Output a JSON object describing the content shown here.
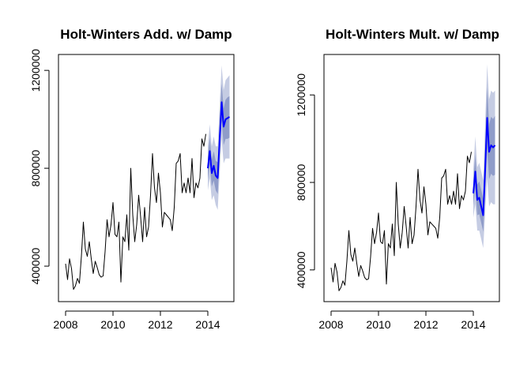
{
  "chart_data": [
    {
      "type": "line",
      "title": "Holt-Winters Add. w/ Damp",
      "xlabel": "",
      "ylabel": "",
      "xlim": [
        2007.7,
        2015.1
      ],
      "ylim": [
        255000,
        1265000
      ],
      "x_ticks": [
        2008,
        2010,
        2012,
        2014
      ],
      "x_tick_labels": [
        "2008",
        "2010",
        "2012",
        "2014"
      ],
      "y_ticks": [
        400000,
        800000,
        1200000
      ],
      "y_tick_labels": [
        "400000",
        "800000",
        "1200000"
      ],
      "grid": false,
      "series": [
        {
          "color": "#000000",
          "x": [
            2008.0,
            2008.083,
            2008.167,
            2008.25,
            2008.333,
            2008.417,
            2008.5,
            2008.583,
            2008.667,
            2008.75,
            2008.833,
            2008.917,
            2009.0,
            2009.083,
            2009.167,
            2009.25,
            2009.333,
            2009.417,
            2009.5,
            2009.583,
            2009.667,
            2009.75,
            2009.833,
            2009.917,
            2010.0,
            2010.083,
            2010.167,
            2010.25,
            2010.333,
            2010.417,
            2010.5,
            2010.583,
            2010.667,
            2010.75,
            2010.833,
            2010.917,
            2011.0,
            2011.083,
            2011.167,
            2011.25,
            2011.333,
            2011.417,
            2011.5,
            2011.583,
            2011.667,
            2011.75,
            2011.833,
            2011.917,
            2012.0,
            2012.083,
            2012.167,
            2012.25,
            2012.333,
            2012.417,
            2012.5,
            2012.583,
            2012.667,
            2012.75,
            2012.833,
            2012.917,
            2013.0,
            2013.083,
            2013.167,
            2013.25,
            2013.333,
            2013.417,
            2013.5,
            2013.583,
            2013.667,
            2013.75,
            2013.833,
            2013.917
          ],
          "y": [
            410000,
            345000,
            430000,
            390000,
            305000,
            320000,
            350000,
            330000,
            440000,
            580000,
            470000,
            440000,
            500000,
            430000,
            370000,
            420000,
            395000,
            365000,
            355000,
            360000,
            460000,
            590000,
            520000,
            570000,
            660000,
            530000,
            520000,
            580000,
            335000,
            520000,
            500000,
            610000,
            465000,
            800000,
            610000,
            500000,
            570000,
            690000,
            600000,
            500000,
            640000,
            520000,
            560000,
            690000,
            860000,
            720000,
            660000,
            780000,
            700000,
            560000,
            620000,
            610000,
            600000,
            590000,
            545000,
            640000,
            820000,
            830000,
            860000,
            700000,
            740000,
            700000,
            760000,
            700000,
            840000,
            680000,
            740000,
            720000,
            760000,
            920000,
            890000,
            940000
          ]
        },
        {
          "color": "#0000ff",
          "x": [
            2014.0,
            2014.083,
            2014.167,
            2014.25,
            2014.333,
            2014.417,
            2014.5,
            2014.583,
            2014.667,
            2014.75,
            2014.833,
            2014.917
          ],
          "y": [
            800000,
            870000,
            780000,
            810000,
            770000,
            760000,
            920000,
            1070000,
            970000,
            1000000,
            1005000,
            1010000
          ]
        }
      ],
      "intervals": [
        {
          "color": "#5a6cb0",
          "opacity": 0.35,
          "x": [
            2014.0,
            2014.083,
            2014.167,
            2014.25,
            2014.333,
            2014.417,
            2014.5,
            2014.583,
            2014.667,
            2014.75,
            2014.833,
            2014.917
          ],
          "lower": [
            710000,
            760000,
            670000,
            690000,
            650000,
            630000,
            780000,
            920000,
            820000,
            840000,
            840000,
            840000
          ],
          "upper": [
            890000,
            980000,
            890000,
            930000,
            890000,
            890000,
            1060000,
            1220000,
            1120000,
            1160000,
            1170000,
            1180000
          ]
        },
        {
          "color": "#5a6cb0",
          "opacity": 0.5,
          "x": [
            2014.0,
            2014.083,
            2014.167,
            2014.25,
            2014.333,
            2014.417,
            2014.5,
            2014.583,
            2014.667,
            2014.75,
            2014.833,
            2014.917
          ],
          "lower": [
            755000,
            815000,
            725000,
            750000,
            710000,
            695000,
            850000,
            995000,
            895000,
            920000,
            920000,
            925000
          ],
          "upper": [
            845000,
            925000,
            835000,
            870000,
            830000,
            825000,
            990000,
            1145000,
            1045000,
            1080000,
            1090000,
            1095000
          ]
        }
      ]
    },
    {
      "type": "line",
      "title": "Holt-Winters Mult. w/ Damp",
      "xlabel": "",
      "ylabel": "",
      "xlim": [
        2007.7,
        2015.1
      ],
      "ylim": [
        255000,
        1385000
      ],
      "x_ticks": [
        2008,
        2010,
        2012,
        2014
      ],
      "x_tick_labels": [
        "2008",
        "2010",
        "2012",
        "2014"
      ],
      "y_ticks": [
        400000,
        800000,
        1200000
      ],
      "y_tick_labels": [
        "400000",
        "800000",
        "1200000"
      ],
      "grid": false,
      "series": [
        {
          "color": "#000000",
          "x": [
            2008.0,
            2008.083,
            2008.167,
            2008.25,
            2008.333,
            2008.417,
            2008.5,
            2008.583,
            2008.667,
            2008.75,
            2008.833,
            2008.917,
            2009.0,
            2009.083,
            2009.167,
            2009.25,
            2009.333,
            2009.417,
            2009.5,
            2009.583,
            2009.667,
            2009.75,
            2009.833,
            2009.917,
            2010.0,
            2010.083,
            2010.167,
            2010.25,
            2010.333,
            2010.417,
            2010.5,
            2010.583,
            2010.667,
            2010.75,
            2010.833,
            2010.917,
            2011.0,
            2011.083,
            2011.167,
            2011.25,
            2011.333,
            2011.417,
            2011.5,
            2011.583,
            2011.667,
            2011.75,
            2011.833,
            2011.917,
            2012.0,
            2012.083,
            2012.167,
            2012.25,
            2012.333,
            2012.417,
            2012.5,
            2012.583,
            2012.667,
            2012.75,
            2012.833,
            2012.917,
            2013.0,
            2013.083,
            2013.167,
            2013.25,
            2013.333,
            2013.417,
            2013.5,
            2013.583,
            2013.667,
            2013.75,
            2013.833,
            2013.917
          ],
          "y": [
            410000,
            345000,
            430000,
            390000,
            305000,
            320000,
            350000,
            330000,
            440000,
            580000,
            470000,
            440000,
            500000,
            430000,
            370000,
            420000,
            395000,
            365000,
            355000,
            360000,
            460000,
            590000,
            520000,
            570000,
            660000,
            530000,
            520000,
            580000,
            335000,
            520000,
            500000,
            610000,
            465000,
            800000,
            610000,
            500000,
            570000,
            690000,
            600000,
            500000,
            640000,
            520000,
            560000,
            690000,
            860000,
            720000,
            660000,
            780000,
            700000,
            560000,
            620000,
            610000,
            600000,
            590000,
            545000,
            640000,
            820000,
            830000,
            860000,
            700000,
            740000,
            700000,
            760000,
            700000,
            840000,
            680000,
            740000,
            720000,
            760000,
            920000,
            890000,
            940000
          ]
        },
        {
          "color": "#0000ff",
          "x": [
            2014.0,
            2014.083,
            2014.167,
            2014.25,
            2014.333,
            2014.417,
            2014.5,
            2014.583,
            2014.667,
            2014.75,
            2014.833,
            2014.917
          ],
          "y": [
            750000,
            850000,
            720000,
            730000,
            690000,
            650000,
            860000,
            1095000,
            940000,
            970000,
            960000,
            970000
          ]
        }
      ],
      "intervals": [
        {
          "color": "#5a6cb0",
          "opacity": 0.35,
          "x": [
            2014.0,
            2014.083,
            2014.167,
            2014.25,
            2014.333,
            2014.417,
            2014.5,
            2014.583,
            2014.667,
            2014.75,
            2014.833,
            2014.917
          ],
          "lower": [
            640000,
            700000,
            580000,
            580000,
            540000,
            500000,
            660000,
            820000,
            690000,
            710000,
            700000,
            700000
          ],
          "upper": [
            860000,
            1010000,
            870000,
            890000,
            850000,
            810000,
            1070000,
            1340000,
            1180000,
            1220000,
            1210000,
            1220000
          ]
        },
        {
          "color": "#5a6cb0",
          "opacity": 0.5,
          "x": [
            2014.0,
            2014.083,
            2014.167,
            2014.25,
            2014.333,
            2014.417,
            2014.5,
            2014.583,
            2014.667,
            2014.75,
            2014.833,
            2014.917
          ],
          "lower": [
            695000,
            775000,
            650000,
            655000,
            615000,
            575000,
            760000,
            955000,
            815000,
            840000,
            830000,
            835000
          ],
          "upper": [
            805000,
            925000,
            790000,
            805000,
            765000,
            725000,
            960000,
            1235000,
            1065000,
            1100000,
            1090000,
            1105000
          ]
        }
      ]
    }
  ]
}
